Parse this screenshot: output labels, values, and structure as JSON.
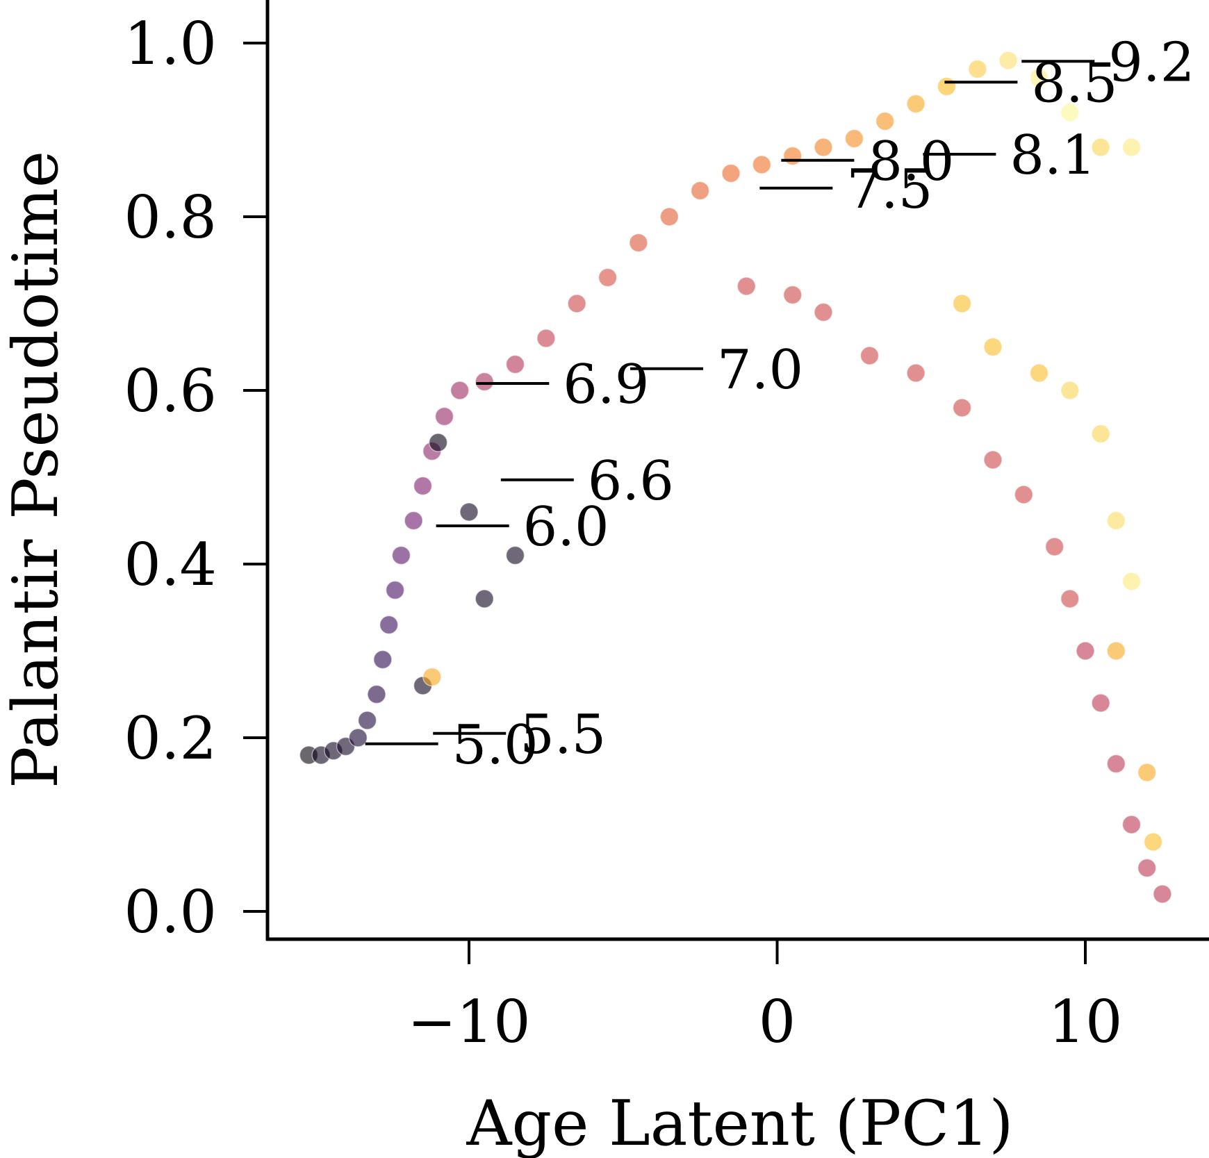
{
  "chart_data": {
    "type": "scatter",
    "title": "",
    "xlabel": "Age Latent (PC1)",
    "ylabel": "Palantir Pseudotime",
    "xlim": [
      -16.5,
      14.5
    ],
    "ylim": [
      -0.035,
      1.05
    ],
    "x_ticks": [
      -10,
      0,
      10
    ],
    "x_tick_labels": [
      "−10",
      "0",
      "10"
    ],
    "y_ticks": [
      0.0,
      0.2,
      0.4,
      0.6,
      0.8,
      1.0
    ],
    "y_tick_labels": [
      "0.0",
      "0.2",
      "0.4",
      "0.6",
      "0.8",
      "1.0"
    ],
    "grid": false,
    "legend": "none",
    "colormap": [
      "#000004",
      "#320a5e",
      "#781c6d",
      "#bc3754",
      "#ed6925",
      "#fbb61a",
      "#fcffa4"
    ],
    "series": [
      {
        "values": [
          {
            "x": -15.2,
            "y": 0.18,
            "c": 0.02
          },
          {
            "x": -14.8,
            "y": 0.18,
            "c": 0.04
          },
          {
            "x": -14.4,
            "y": 0.185,
            "c": 0.05
          },
          {
            "x": -14.0,
            "y": 0.19,
            "c": 0.06
          },
          {
            "x": -13.6,
            "y": 0.2,
            "c": 0.08
          },
          {
            "x": -13.3,
            "y": 0.22,
            "c": 0.1
          },
          {
            "x": -13.0,
            "y": 0.25,
            "c": 0.12
          },
          {
            "x": -12.8,
            "y": 0.29,
            "c": 0.14
          },
          {
            "x": -12.6,
            "y": 0.33,
            "c": 0.18
          },
          {
            "x": -12.4,
            "y": 0.37,
            "c": 0.22
          },
          {
            "x": -12.2,
            "y": 0.41,
            "c": 0.26
          },
          {
            "x": -11.8,
            "y": 0.45,
            "c": 0.3
          },
          {
            "x": -11.5,
            "y": 0.49,
            "c": 0.34
          },
          {
            "x": -11.2,
            "y": 0.53,
            "c": 0.38
          },
          {
            "x": -10.8,
            "y": 0.57,
            "c": 0.4
          },
          {
            "x": -10.3,
            "y": 0.6,
            "c": 0.42
          },
          {
            "x": -9.5,
            "y": 0.61,
            "c": 0.45
          },
          {
            "x": -8.5,
            "y": 0.63,
            "c": 0.48
          },
          {
            "x": -7.5,
            "y": 0.66,
            "c": 0.52
          },
          {
            "x": -6.5,
            "y": 0.7,
            "c": 0.55
          },
          {
            "x": -5.5,
            "y": 0.73,
            "c": 0.58
          },
          {
            "x": -4.5,
            "y": 0.77,
            "c": 0.6
          },
          {
            "x": -3.5,
            "y": 0.8,
            "c": 0.62
          },
          {
            "x": -2.5,
            "y": 0.83,
            "c": 0.64
          },
          {
            "x": -1.5,
            "y": 0.85,
            "c": 0.66
          },
          {
            "x": -0.5,
            "y": 0.86,
            "c": 0.68
          },
          {
            "x": 0.5,
            "y": 0.87,
            "c": 0.7
          },
          {
            "x": 1.5,
            "y": 0.88,
            "c": 0.72
          },
          {
            "x": 2.5,
            "y": 0.89,
            "c": 0.74
          },
          {
            "x": 3.5,
            "y": 0.91,
            "c": 0.76
          },
          {
            "x": 4.5,
            "y": 0.93,
            "c": 0.8
          },
          {
            "x": 5.5,
            "y": 0.95,
            "c": 0.84
          },
          {
            "x": 6.5,
            "y": 0.97,
            "c": 0.88
          },
          {
            "x": 7.5,
            "y": 0.98,
            "c": 0.93
          },
          {
            "x": 8.5,
            "y": 0.96,
            "c": 0.96
          },
          {
            "x": 9.5,
            "y": 0.92,
            "c": 0.98
          },
          {
            "x": 10.5,
            "y": 0.88,
            "c": 0.9
          },
          {
            "x": 11.5,
            "y": 0.88,
            "c": 0.95
          },
          {
            "x": -1.0,
            "y": 0.72,
            "c": 0.55
          },
          {
            "x": 0.5,
            "y": 0.71,
            "c": 0.55
          },
          {
            "x": 1.5,
            "y": 0.69,
            "c": 0.55
          },
          {
            "x": 3.0,
            "y": 0.64,
            "c": 0.55
          },
          {
            "x": 4.5,
            "y": 0.62,
            "c": 0.55
          },
          {
            "x": 6.0,
            "y": 0.58,
            "c": 0.55
          },
          {
            "x": 7.0,
            "y": 0.52,
            "c": 0.55
          },
          {
            "x": 8.0,
            "y": 0.48,
            "c": 0.55
          },
          {
            "x": 9.0,
            "y": 0.42,
            "c": 0.55
          },
          {
            "x": 9.5,
            "y": 0.36,
            "c": 0.55
          },
          {
            "x": 10.0,
            "y": 0.3,
            "c": 0.5
          },
          {
            "x": 10.5,
            "y": 0.24,
            "c": 0.5
          },
          {
            "x": 11.0,
            "y": 0.17,
            "c": 0.5
          },
          {
            "x": 11.5,
            "y": 0.1,
            "c": 0.5
          },
          {
            "x": 12.0,
            "y": 0.05,
            "c": 0.5
          },
          {
            "x": 12.5,
            "y": 0.02,
            "c": 0.5
          },
          {
            "x": 6.0,
            "y": 0.7,
            "c": 0.85
          },
          {
            "x": 7.0,
            "y": 0.65,
            "c": 0.85
          },
          {
            "x": 8.5,
            "y": 0.62,
            "c": 0.85
          },
          {
            "x": 9.5,
            "y": 0.6,
            "c": 0.9
          },
          {
            "x": 10.5,
            "y": 0.55,
            "c": 0.9
          },
          {
            "x": 11.0,
            "y": 0.45,
            "c": 0.92
          },
          {
            "x": 11.5,
            "y": 0.38,
            "c": 0.95
          },
          {
            "x": 11.0,
            "y": 0.3,
            "c": 0.8
          },
          {
            "x": 12.0,
            "y": 0.16,
            "c": 0.8
          },
          {
            "x": 12.2,
            "y": 0.08,
            "c": 0.85
          },
          {
            "x": -11.0,
            "y": 0.54,
            "c": 0.03
          },
          {
            "x": -10.0,
            "y": 0.46,
            "c": 0.05
          },
          {
            "x": -9.5,
            "y": 0.36,
            "c": 0.05
          },
          {
            "x": -8.5,
            "y": 0.41,
            "c": 0.05
          },
          {
            "x": -11.5,
            "y": 0.26,
            "c": 0.05
          },
          {
            "x": -11.2,
            "y": 0.27,
            "c": 0.8
          }
        ]
      }
    ],
    "annotations": [
      {
        "label": "5.0",
        "x": -11.0,
        "y": 0.193
      },
      {
        "label": "5.5",
        "x": -8.8,
        "y": 0.205
      },
      {
        "label": "6.0",
        "x": -8.7,
        "y": 0.444
      },
      {
        "label": "6.6",
        "x": -6.6,
        "y": 0.497
      },
      {
        "label": "6.9",
        "x": -7.4,
        "y": 0.608
      },
      {
        "label": "7.0",
        "x": -2.4,
        "y": 0.625
      },
      {
        "label": "7.5",
        "x": 1.8,
        "y": 0.833
      },
      {
        "label": "8.0",
        "x": 2.5,
        "y": 0.865
      },
      {
        "label": "8.1",
        "x": 7.1,
        "y": 0.872
      },
      {
        "label": "8.5",
        "x": 7.8,
        "y": 0.955
      },
      {
        "label": "9.2",
        "x": 10.3,
        "y": 0.979
      }
    ]
  }
}
